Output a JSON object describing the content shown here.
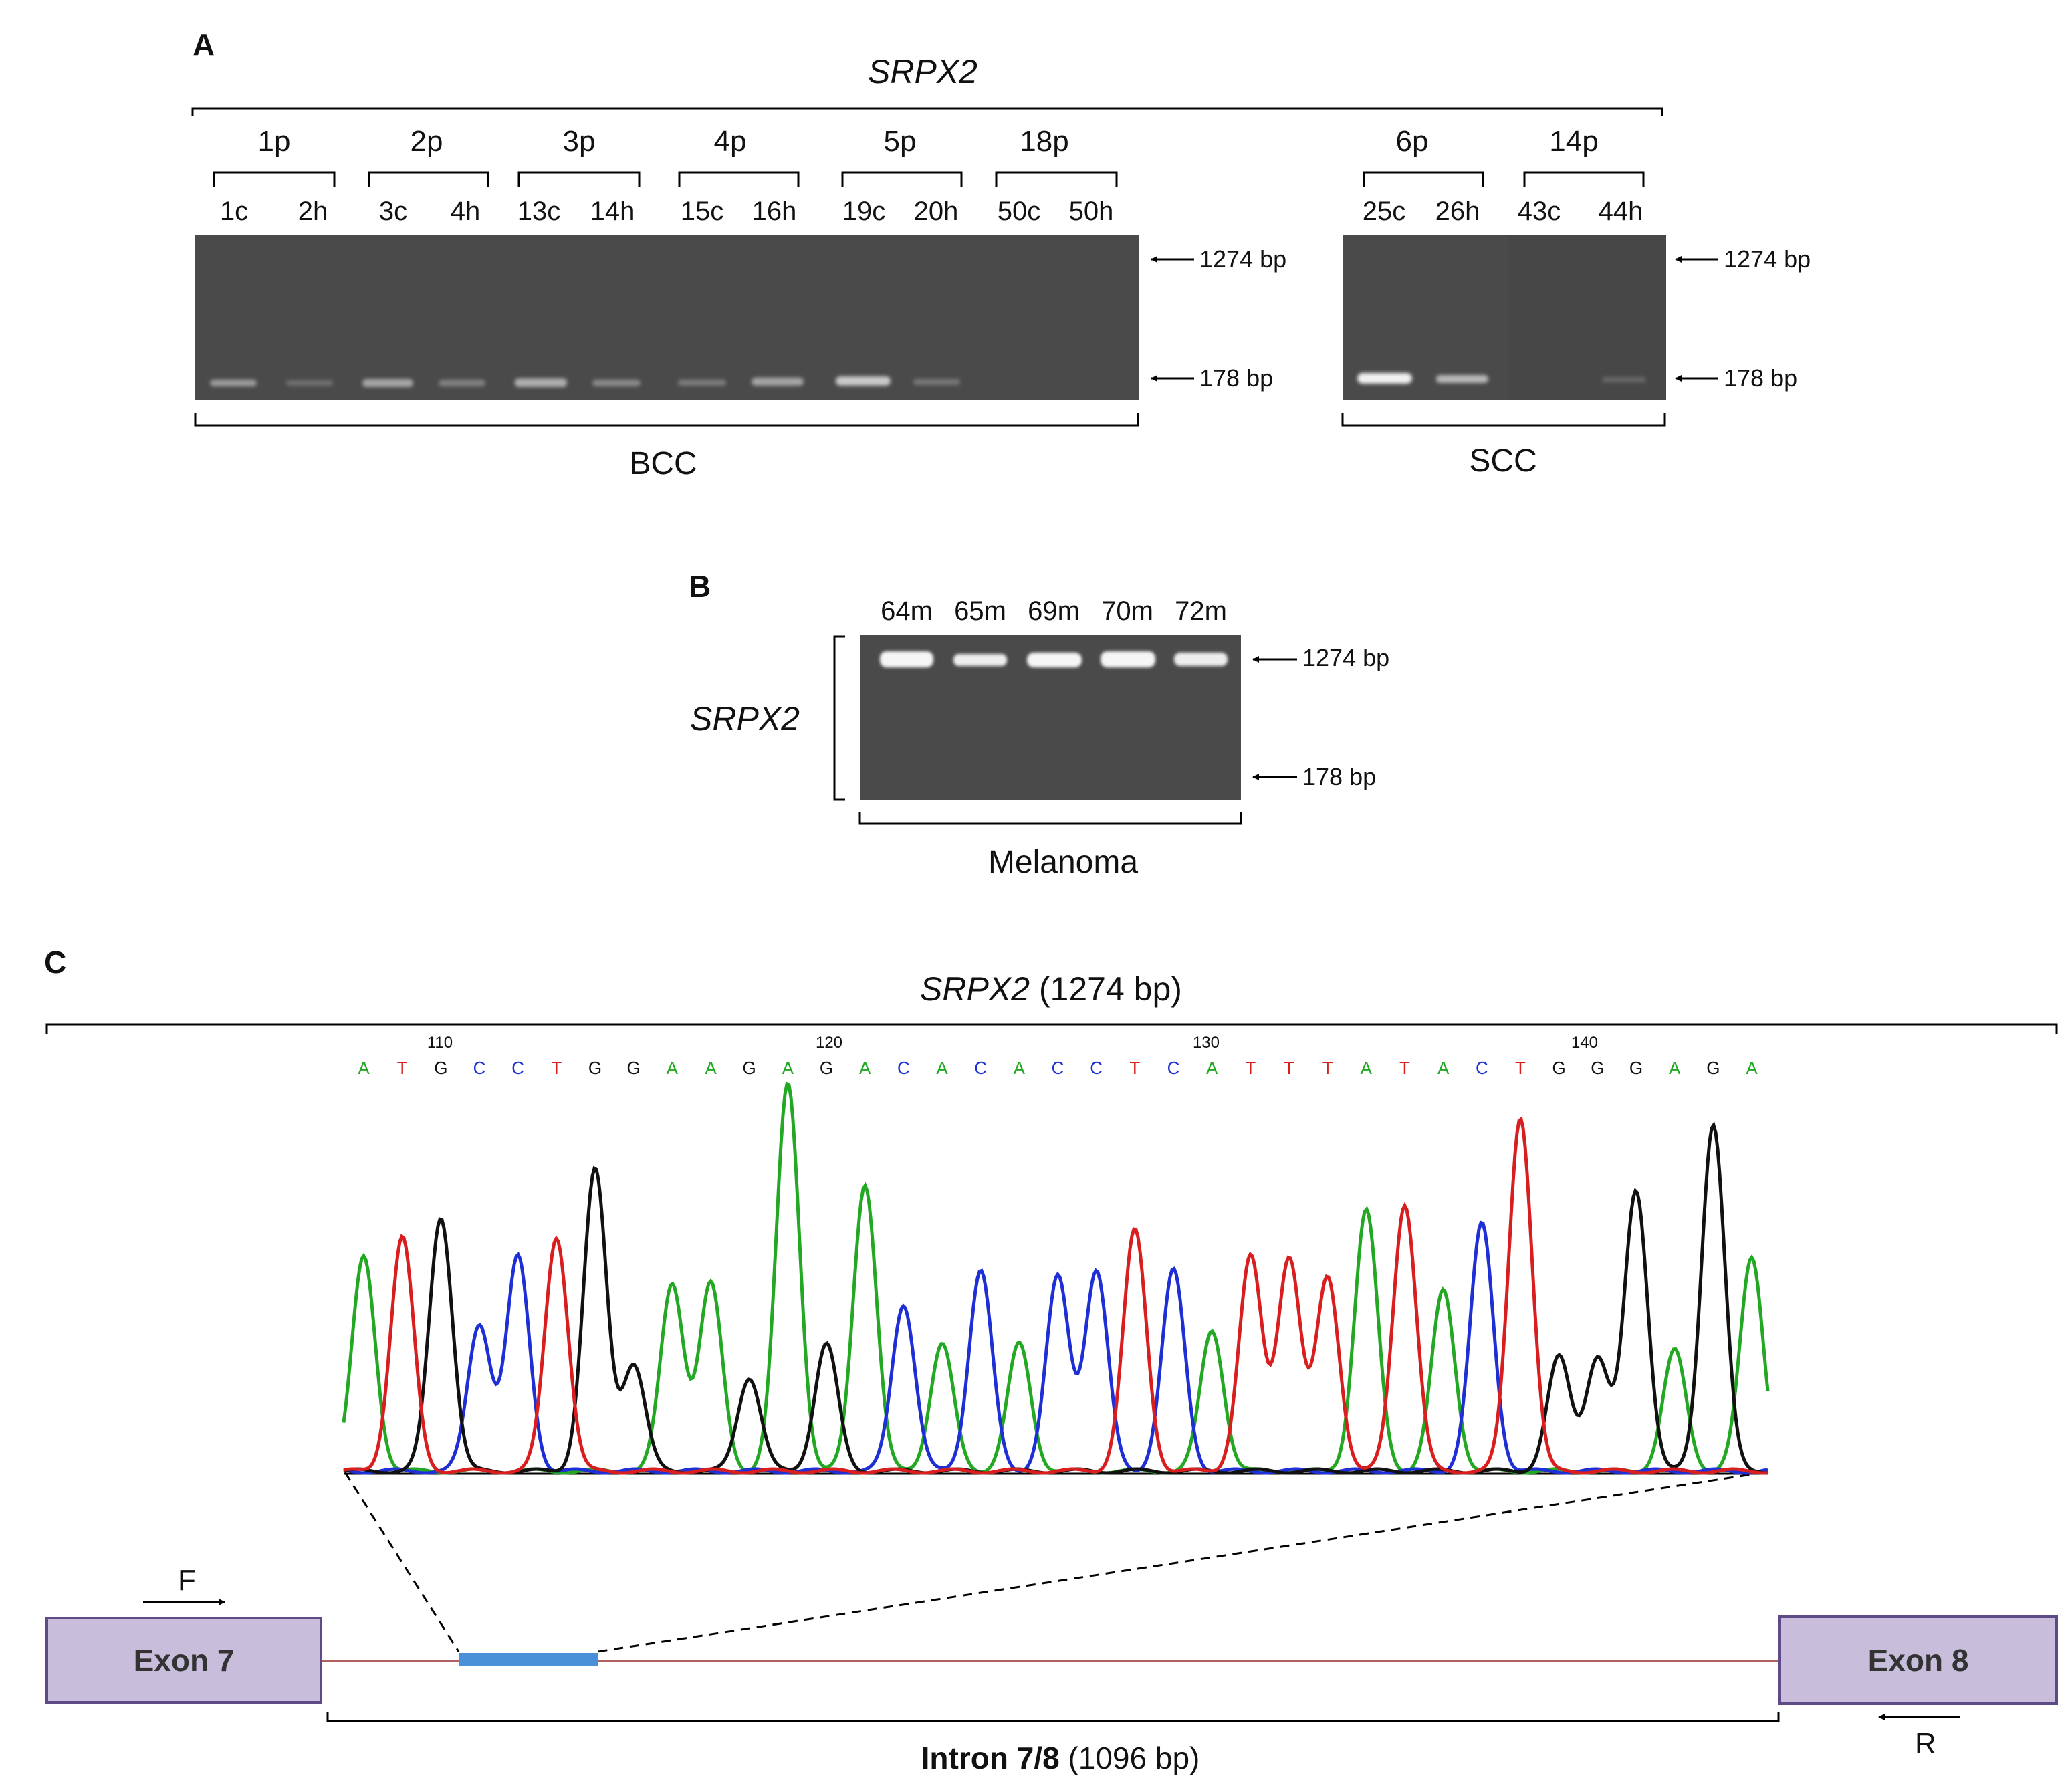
{
  "panel_a": {
    "label": "A",
    "gene": "SRPX2",
    "groups": [
      "1p",
      "2p",
      "3p",
      "4p",
      "5p",
      "18p",
      "6p",
      "14p"
    ],
    "lanes": [
      "1c",
      "2h",
      "3c",
      "4h",
      "13c",
      "14h",
      "15c",
      "16h",
      "19c",
      "20h",
      "50c",
      "50h",
      "25c",
      "26h",
      "43c",
      "44h"
    ],
    "markers": [
      "1274 bp",
      "178 bp"
    ],
    "categories": [
      "BCC",
      "SCC"
    ]
  },
  "panel_b": {
    "label": "B",
    "gene": "SRPX2",
    "lanes": [
      "64m",
      "65m",
      "69m",
      "70m",
      "72m"
    ],
    "markers": [
      "1274 bp",
      "178 bp"
    ],
    "category": "Melanoma"
  },
  "panel_c": {
    "label": "C",
    "gene": "SRPX2",
    "gene_suffix": " (1274 bp)",
    "positions": [
      "110",
      "120",
      "130",
      "140"
    ],
    "sequence": [
      "A",
      "T",
      "G",
      "C",
      "C",
      "T",
      "G",
      "G",
      "A",
      "A",
      "G",
      "A",
      "G",
      "A",
      "C",
      "A",
      "C",
      "A",
      "C",
      "C",
      "T",
      "C",
      "A",
      "T",
      "T",
      "T",
      "A",
      "T",
      "A",
      "C",
      "T",
      "G",
      "G",
      "G",
      "A",
      "G",
      "A"
    ],
    "exon_left": "Exon 7",
    "exon_right": "Exon 8",
    "primer_forward": "F",
    "primer_reverse": "R",
    "intron_bold": "Intron 7/8",
    "intron_size": " (1096 bp)"
  },
  "colors": {
    "A": "#22a822",
    "C": "#1f2fd6",
    "G": "#111111",
    "T": "#d81e1e",
    "exon_fill": "#c9bddc",
    "exon_border": "#5e4a86",
    "intron_line": "#b06060",
    "region": "#4a90d9"
  }
}
